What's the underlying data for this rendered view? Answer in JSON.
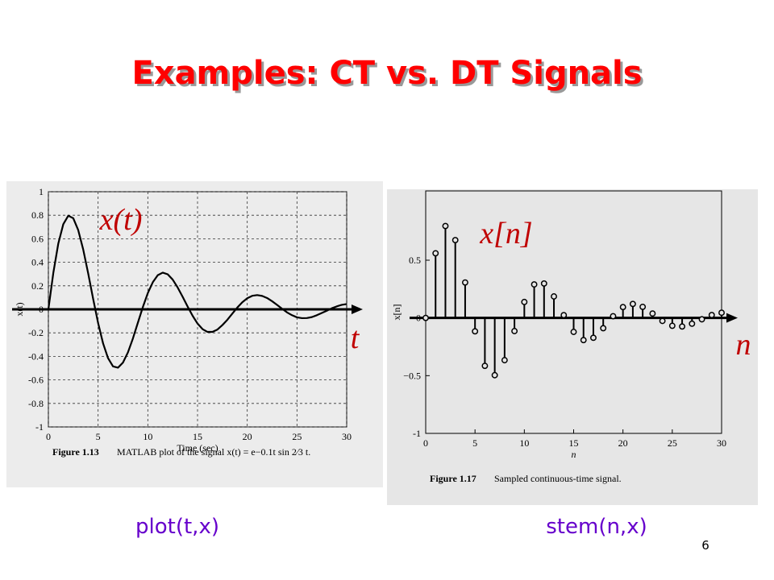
{
  "slide": {
    "title": "Examples: CT vs. DT Signals",
    "captions": [
      "plot(t,x)",
      "stem(n,x)"
    ],
    "page_number": "6"
  },
  "chart_data": [
    {
      "type": "line",
      "color": "#000000",
      "grid": true,
      "x": [
        0,
        0.5,
        1,
        1.5,
        2,
        2.5,
        3,
        3.5,
        4,
        4.5,
        5,
        5.5,
        6,
        6.5,
        7,
        7.5,
        8,
        8.5,
        9,
        9.5,
        10,
        10.5,
        11,
        11.5,
        12,
        12.5,
        13,
        13.5,
        14,
        14.5,
        15,
        15.5,
        16,
        16.5,
        17,
        17.5,
        18,
        18.5,
        19,
        19.5,
        20,
        20.5,
        21,
        21.5,
        22,
        22.5,
        23,
        23.5,
        24,
        24.5,
        25,
        25.5,
        26,
        26.5,
        27,
        27.5,
        28,
        28.5,
        29,
        29.5,
        30
      ],
      "values": [
        0,
        0.311,
        0.56,
        0.724,
        0.796,
        0.775,
        0.674,
        0.51,
        0.307,
        0.09,
        -0.116,
        -0.289,
        -0.415,
        -0.485,
        -0.496,
        -0.453,
        -0.366,
        -0.248,
        -0.114,
        0.019,
        0.138,
        0.23,
        0.29,
        0.312,
        0.298,
        0.253,
        0.186,
        0.107,
        0.024,
        -0.054,
        -0.121,
        -0.168,
        -0.192,
        -0.192,
        -0.172,
        -0.134,
        -0.089,
        -0.036,
        0.015,
        0.06,
        0.094,
        0.115,
        0.121,
        0.114,
        0.096,
        0.069,
        0.038,
        0.005,
        -0.026,
        -0.05,
        -0.068,
        -0.075,
        -0.074,
        -0.066,
        -0.05,
        -0.031,
        -0.012,
        0.009,
        0.025,
        0.038,
        0.045
      ],
      "xlim": [
        0,
        30
      ],
      "ylim": [
        -1,
        1
      ],
      "xticks": [
        0,
        5,
        10,
        15,
        20,
        25,
        30
      ],
      "yticks": [
        -1,
        -0.8,
        -0.6,
        -0.4,
        -0.2,
        0,
        0.2,
        0.4,
        0.6,
        0.8,
        1
      ],
      "xlabel": "Time (sec)",
      "ylabel": "x(t)",
      "figure_label": "Figure 1.13",
      "caption": "MATLAB plot of the signal x(t) = e−0.1t sin 2⁄3 t.",
      "annotations": [
        "x(t)",
        "t"
      ]
    },
    {
      "type": "stem",
      "color": "#000000",
      "grid": false,
      "x": [
        0,
        1,
        2,
        3,
        4,
        5,
        6,
        7,
        8,
        9,
        10,
        11,
        12,
        13,
        14,
        15,
        16,
        17,
        18,
        19,
        20,
        21,
        22,
        23,
        24,
        25,
        26,
        27,
        28,
        29,
        30
      ],
      "values": [
        0,
        0.56,
        0.796,
        0.674,
        0.307,
        -0.116,
        -0.415,
        -0.496,
        -0.366,
        -0.114,
        0.138,
        0.29,
        0.298,
        0.186,
        0.024,
        -0.121,
        -0.192,
        -0.172,
        -0.089,
        0.015,
        0.094,
        0.121,
        0.096,
        0.038,
        -0.026,
        -0.068,
        -0.074,
        -0.05,
        -0.012,
        0.025,
        0.045
      ],
      "xlim": [
        0,
        30
      ],
      "ylim": [
        -1,
        1.1
      ],
      "xticks": [
        0,
        5,
        10,
        15,
        20,
        25,
        30
      ],
      "yticks": [
        -1,
        {
          "value": -0.5,
          "label": "−0.5"
        },
        0,
        0.5
      ],
      "xlabel": "n",
      "ylabel": "x[n]",
      "figure_label": "Figure 1.17",
      "caption": "Sampled continuous-time signal.",
      "annotations": [
        "x[n]",
        "n"
      ]
    }
  ]
}
